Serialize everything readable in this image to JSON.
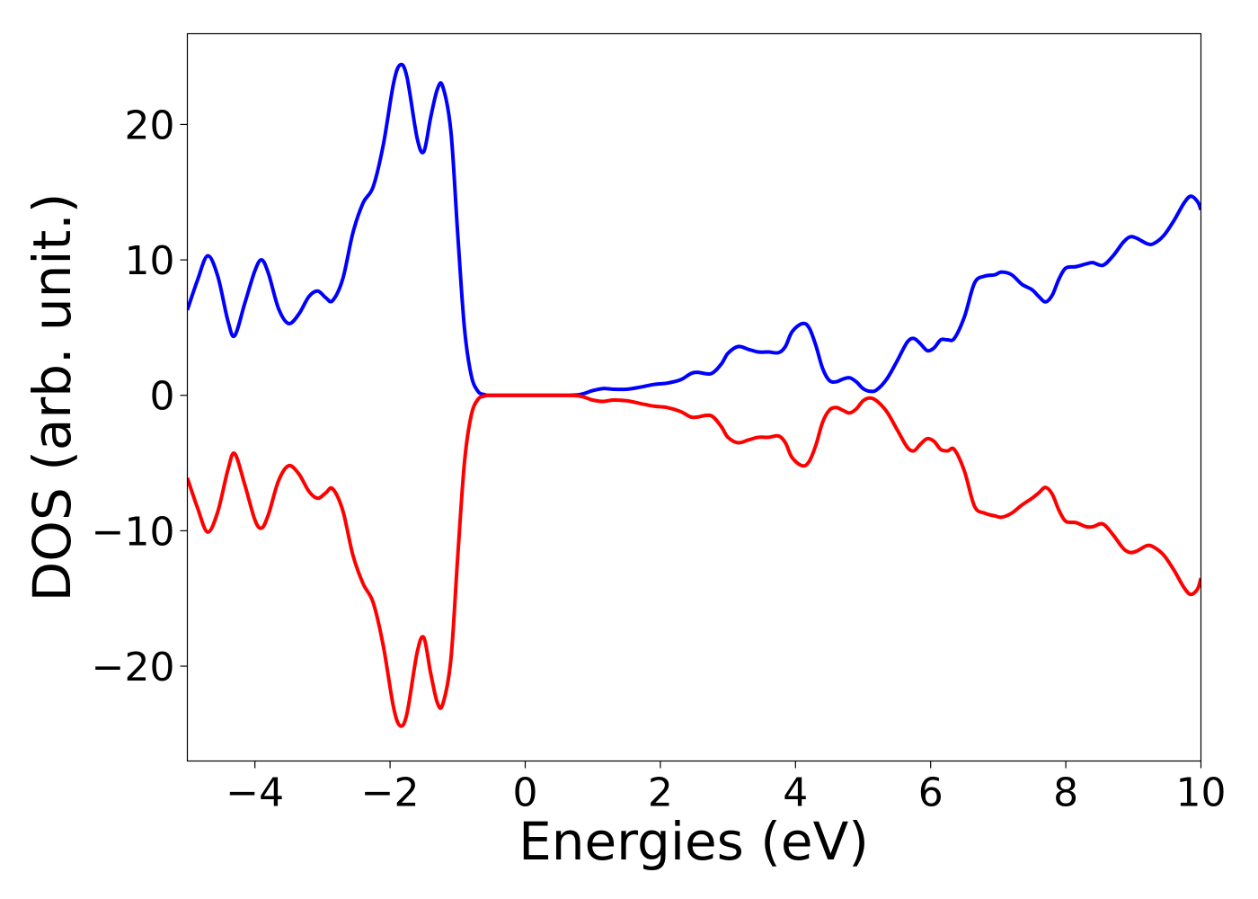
{
  "chart_data": {
    "type": "line",
    "title": "",
    "xlabel": "Energies (eV)",
    "ylabel": "DOS (arb. unit.)",
    "xlim": [
      -5,
      10
    ],
    "ylim": [
      -27,
      26.7
    ],
    "xticks": [
      -4,
      -2,
      0,
      2,
      4,
      6,
      8,
      10
    ],
    "xtick_labels": [
      "−4",
      "−2",
      "0",
      "2",
      "4",
      "6",
      "8",
      "10"
    ],
    "yticks": [
      -20,
      -10,
      0,
      10,
      20
    ],
    "ytick_labels": [
      "−20",
      "−10",
      "0",
      "10",
      "20"
    ],
    "grid": false,
    "legend": false,
    "series": [
      {
        "color": "#0000ff",
        "points": [
          [
            -5.0,
            6.3
          ],
          [
            -4.85,
            8.5
          ],
          [
            -4.7,
            10.3
          ],
          [
            -4.55,
            8.8
          ],
          [
            -4.4,
            5.5
          ],
          [
            -4.3,
            4.4
          ],
          [
            -4.15,
            6.8
          ],
          [
            -4.0,
            9.2
          ],
          [
            -3.9,
            10.0
          ],
          [
            -3.8,
            9.0
          ],
          [
            -3.65,
            6.4
          ],
          [
            -3.5,
            5.3
          ],
          [
            -3.35,
            6.0
          ],
          [
            -3.2,
            7.3
          ],
          [
            -3.07,
            7.7
          ],
          [
            -2.95,
            7.2
          ],
          [
            -2.85,
            7.0
          ],
          [
            -2.7,
            8.6
          ],
          [
            -2.55,
            12.0
          ],
          [
            -2.4,
            14.2
          ],
          [
            -2.25,
            15.4
          ],
          [
            -2.1,
            18.5
          ],
          [
            -1.95,
            23.0
          ],
          [
            -1.85,
            24.4
          ],
          [
            -1.75,
            23.5
          ],
          [
            -1.6,
            19.0
          ],
          [
            -1.5,
            18.0
          ],
          [
            -1.4,
            20.5
          ],
          [
            -1.3,
            22.6
          ],
          [
            -1.22,
            22.8
          ],
          [
            -1.1,
            19.5
          ],
          [
            -1.0,
            12.0
          ],
          [
            -0.9,
            5.0
          ],
          [
            -0.8,
            1.5
          ],
          [
            -0.7,
            0.3
          ],
          [
            -0.6,
            0.05
          ],
          [
            -0.5,
            0.0
          ],
          [
            0.0,
            0.0
          ],
          [
            0.5,
            0.0
          ],
          [
            0.8,
            0.05
          ],
          [
            1.0,
            0.35
          ],
          [
            1.15,
            0.5
          ],
          [
            1.3,
            0.45
          ],
          [
            1.5,
            0.45
          ],
          [
            1.7,
            0.6
          ],
          [
            1.9,
            0.8
          ],
          [
            2.1,
            0.9
          ],
          [
            2.3,
            1.15
          ],
          [
            2.45,
            1.6
          ],
          [
            2.55,
            1.7
          ],
          [
            2.75,
            1.6
          ],
          [
            2.9,
            2.3
          ],
          [
            3.0,
            3.1
          ],
          [
            3.15,
            3.6
          ],
          [
            3.3,
            3.4
          ],
          [
            3.45,
            3.2
          ],
          [
            3.6,
            3.2
          ],
          [
            3.75,
            3.15
          ],
          [
            3.85,
            3.6
          ],
          [
            3.95,
            4.7
          ],
          [
            4.1,
            5.3
          ],
          [
            4.2,
            5.0
          ],
          [
            4.3,
            3.7
          ],
          [
            4.4,
            2.0
          ],
          [
            4.5,
            1.1
          ],
          [
            4.6,
            1.0
          ],
          [
            4.7,
            1.2
          ],
          [
            4.8,
            1.3
          ],
          [
            4.9,
            1.0
          ],
          [
            5.0,
            0.5
          ],
          [
            5.1,
            0.3
          ],
          [
            5.2,
            0.4
          ],
          [
            5.35,
            1.2
          ],
          [
            5.5,
            2.5
          ],
          [
            5.65,
            3.9
          ],
          [
            5.75,
            4.2
          ],
          [
            5.85,
            3.8
          ],
          [
            5.95,
            3.3
          ],
          [
            6.05,
            3.5
          ],
          [
            6.15,
            4.1
          ],
          [
            6.25,
            4.1
          ],
          [
            6.35,
            4.2
          ],
          [
            6.5,
            5.8
          ],
          [
            6.65,
            8.3
          ],
          [
            6.8,
            8.8
          ],
          [
            6.95,
            8.9
          ],
          [
            7.05,
            9.1
          ],
          [
            7.2,
            8.9
          ],
          [
            7.35,
            8.2
          ],
          [
            7.5,
            7.8
          ],
          [
            7.6,
            7.3
          ],
          [
            7.7,
            6.9
          ],
          [
            7.8,
            7.4
          ],
          [
            7.9,
            8.6
          ],
          [
            8.0,
            9.4
          ],
          [
            8.15,
            9.5
          ],
          [
            8.3,
            9.7
          ],
          [
            8.4,
            9.8
          ],
          [
            8.55,
            9.6
          ],
          [
            8.7,
            10.3
          ],
          [
            8.85,
            11.3
          ],
          [
            8.95,
            11.7
          ],
          [
            9.05,
            11.6
          ],
          [
            9.2,
            11.2
          ],
          [
            9.3,
            11.2
          ],
          [
            9.45,
            11.8
          ],
          [
            9.6,
            12.9
          ],
          [
            9.75,
            14.2
          ],
          [
            9.85,
            14.7
          ],
          [
            9.95,
            14.3
          ],
          [
            10.0,
            13.7
          ]
        ]
      },
      {
        "color": "#ff0000",
        "points": [
          [
            -5.0,
            -6.1
          ],
          [
            -4.85,
            -8.3
          ],
          [
            -4.7,
            -10.1
          ],
          [
            -4.55,
            -8.6
          ],
          [
            -4.4,
            -5.5
          ],
          [
            -4.3,
            -4.3
          ],
          [
            -4.15,
            -6.6
          ],
          [
            -4.0,
            -9.2
          ],
          [
            -3.9,
            -9.8
          ],
          [
            -3.8,
            -8.8
          ],
          [
            -3.65,
            -6.3
          ],
          [
            -3.5,
            -5.2
          ],
          [
            -3.35,
            -5.8
          ],
          [
            -3.2,
            -7.1
          ],
          [
            -3.07,
            -7.6
          ],
          [
            -2.95,
            -7.2
          ],
          [
            -2.85,
            -6.9
          ],
          [
            -2.7,
            -8.5
          ],
          [
            -2.55,
            -11.8
          ],
          [
            -2.4,
            -13.9
          ],
          [
            -2.25,
            -15.3
          ],
          [
            -2.1,
            -18.5
          ],
          [
            -1.95,
            -23.0
          ],
          [
            -1.85,
            -24.4
          ],
          [
            -1.75,
            -23.5
          ],
          [
            -1.6,
            -19.0
          ],
          [
            -1.5,
            -17.9
          ],
          [
            -1.4,
            -20.5
          ],
          [
            -1.3,
            -22.7
          ],
          [
            -1.22,
            -22.8
          ],
          [
            -1.1,
            -19.5
          ],
          [
            -1.0,
            -12.0
          ],
          [
            -0.9,
            -5.0
          ],
          [
            -0.8,
            -1.5
          ],
          [
            -0.7,
            -0.3
          ],
          [
            -0.6,
            -0.05
          ],
          [
            -0.5,
            0.0
          ],
          [
            0.0,
            0.0
          ],
          [
            0.5,
            0.0
          ],
          [
            0.8,
            -0.05
          ],
          [
            1.0,
            -0.35
          ],
          [
            1.15,
            -0.45
          ],
          [
            1.3,
            -0.35
          ],
          [
            1.5,
            -0.4
          ],
          [
            1.7,
            -0.6
          ],
          [
            1.9,
            -0.8
          ],
          [
            2.1,
            -0.9
          ],
          [
            2.3,
            -1.2
          ],
          [
            2.45,
            -1.6
          ],
          [
            2.55,
            -1.6
          ],
          [
            2.75,
            -1.5
          ],
          [
            2.9,
            -2.3
          ],
          [
            3.0,
            -3.1
          ],
          [
            3.15,
            -3.5
          ],
          [
            3.3,
            -3.3
          ],
          [
            3.45,
            -3.1
          ],
          [
            3.6,
            -3.1
          ],
          [
            3.75,
            -3.0
          ],
          [
            3.85,
            -3.5
          ],
          [
            3.95,
            -4.6
          ],
          [
            4.1,
            -5.2
          ],
          [
            4.2,
            -4.9
          ],
          [
            4.3,
            -3.7
          ],
          [
            4.4,
            -2.0
          ],
          [
            4.5,
            -1.1
          ],
          [
            4.6,
            -0.9
          ],
          [
            4.7,
            -1.1
          ],
          [
            4.8,
            -1.3
          ],
          [
            4.9,
            -1.0
          ],
          [
            5.0,
            -0.4
          ],
          [
            5.1,
            -0.2
          ],
          [
            5.2,
            -0.4
          ],
          [
            5.35,
            -1.2
          ],
          [
            5.5,
            -2.5
          ],
          [
            5.65,
            -3.8
          ],
          [
            5.75,
            -4.1
          ],
          [
            5.85,
            -3.6
          ],
          [
            5.95,
            -3.2
          ],
          [
            6.05,
            -3.4
          ],
          [
            6.15,
            -4.0
          ],
          [
            6.25,
            -4.1
          ],
          [
            6.35,
            -4.0
          ],
          [
            6.5,
            -5.6
          ],
          [
            6.65,
            -8.2
          ],
          [
            6.8,
            -8.7
          ],
          [
            6.95,
            -8.9
          ],
          [
            7.05,
            -9.0
          ],
          [
            7.2,
            -8.7
          ],
          [
            7.35,
            -8.1
          ],
          [
            7.5,
            -7.6
          ],
          [
            7.6,
            -7.2
          ],
          [
            7.7,
            -6.8
          ],
          [
            7.8,
            -7.3
          ],
          [
            7.9,
            -8.5
          ],
          [
            8.0,
            -9.3
          ],
          [
            8.15,
            -9.4
          ],
          [
            8.3,
            -9.7
          ],
          [
            8.4,
            -9.7
          ],
          [
            8.55,
            -9.5
          ],
          [
            8.7,
            -10.3
          ],
          [
            8.85,
            -11.3
          ],
          [
            8.95,
            -11.6
          ],
          [
            9.05,
            -11.5
          ],
          [
            9.2,
            -11.1
          ],
          [
            9.3,
            -11.2
          ],
          [
            9.45,
            -11.8
          ],
          [
            9.6,
            -12.9
          ],
          [
            9.75,
            -14.2
          ],
          [
            9.85,
            -14.7
          ],
          [
            9.95,
            -14.3
          ],
          [
            10.0,
            -13.5
          ]
        ]
      }
    ]
  }
}
